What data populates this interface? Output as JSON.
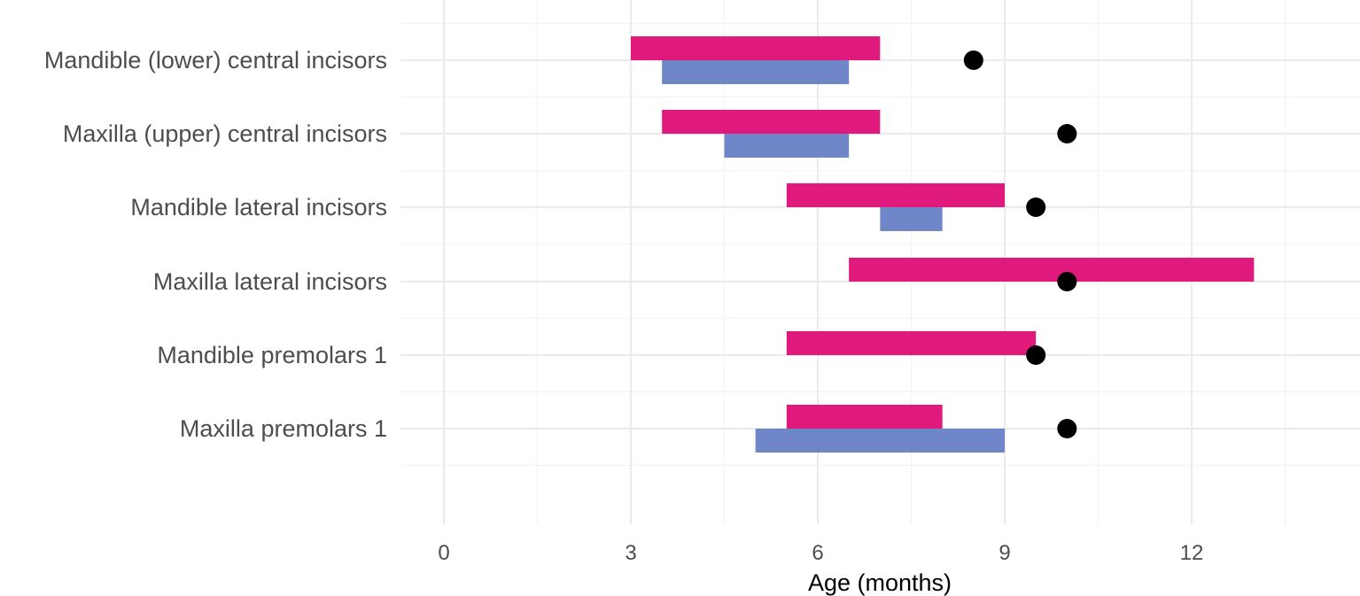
{
  "chart_data": {
    "type": "bar",
    "orientation": "horizontal-range",
    "title": "",
    "xlabel": "Age (months)",
    "ylabel": "",
    "xlim": [
      -0.7,
      14.5
    ],
    "xticks": [
      0,
      3,
      6,
      9,
      12
    ],
    "grid": true,
    "legend": "none",
    "categories": [
      "Mandible (lower) central incisors",
      "Maxilla (upper) central incisors",
      "Mandible lateral incisors",
      "Maxilla lateral incisors",
      "Mandible premolars 1",
      "Maxilla premolars 1"
    ],
    "series": [
      {
        "color": "#e0197d",
        "ranges": [
          [
            3,
            7
          ],
          [
            3.5,
            7
          ],
          [
            5.5,
            9
          ],
          [
            6.5,
            13
          ],
          [
            5.5,
            9.5
          ],
          [
            5.5,
            8
          ]
        ]
      },
      {
        "color": "#6f86c8",
        "ranges": [
          [
            3.5,
            6.5
          ],
          [
            4.5,
            6.5
          ],
          [
            7,
            8
          ],
          null,
          null,
          [
            5,
            9
          ]
        ]
      },
      {
        "color": "#000000",
        "points": [
          8.5,
          10,
          9.5,
          10,
          9.5,
          10
        ]
      }
    ]
  }
}
